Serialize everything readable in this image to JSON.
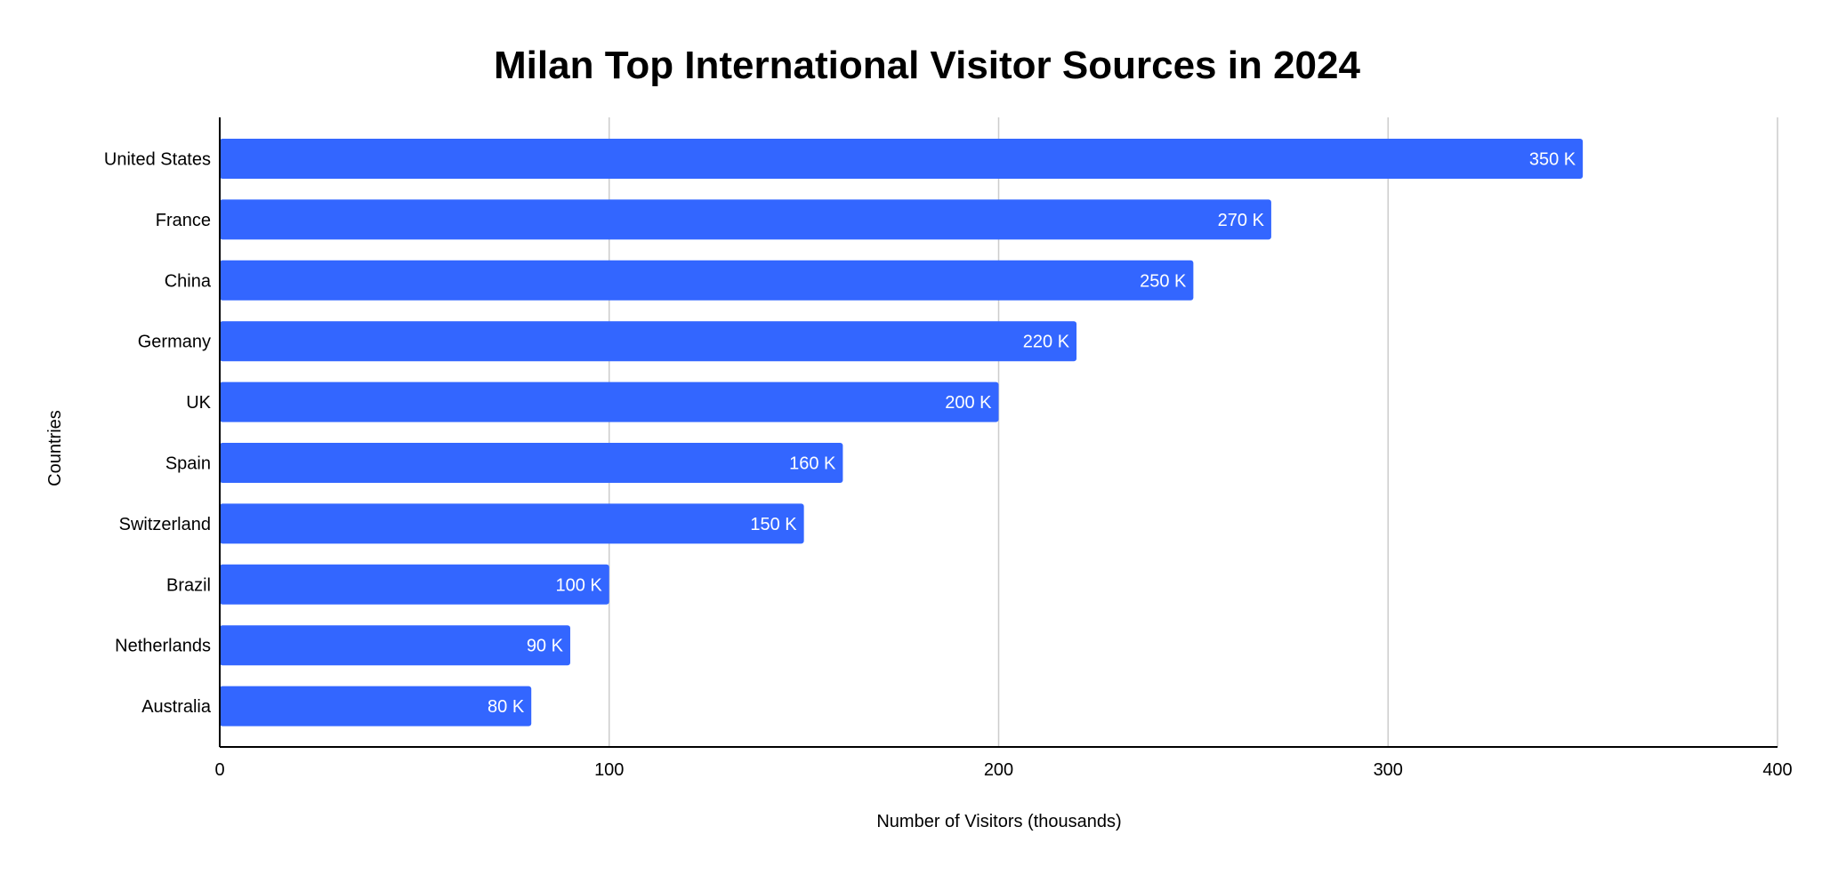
{
  "chart_data": {
    "type": "bar",
    "orientation": "horizontal",
    "title": "Milan Top International Visitor Sources in 2024",
    "xlabel": "Number of Visitors (thousands)",
    "ylabel": "Countries",
    "categories": [
      "United States",
      "France",
      "China",
      "Germany",
      "UK",
      "Spain",
      "Switzerland",
      "Brazil",
      "Netherlands",
      "Australia"
    ],
    "values": [
      350,
      270,
      250,
      220,
      200,
      160,
      150,
      100,
      90,
      80
    ],
    "data_labels": [
      "350 K",
      "270 K",
      "250 K",
      "220 K",
      "200 K",
      "160 K",
      "150 K",
      "100 K",
      "90 K",
      "80 K"
    ],
    "xlim": [
      0,
      400
    ],
    "x_ticks": [
      0,
      100,
      200,
      300,
      400
    ],
    "x_tick_labels": [
      "0",
      "100",
      "200",
      "300",
      "400"
    ],
    "grid": "vertical",
    "legend": "none",
    "colors": {
      "bar": "#3366ff",
      "grid": "#cccccc",
      "axis": "#000000",
      "data_label": "#ffffff"
    }
  }
}
